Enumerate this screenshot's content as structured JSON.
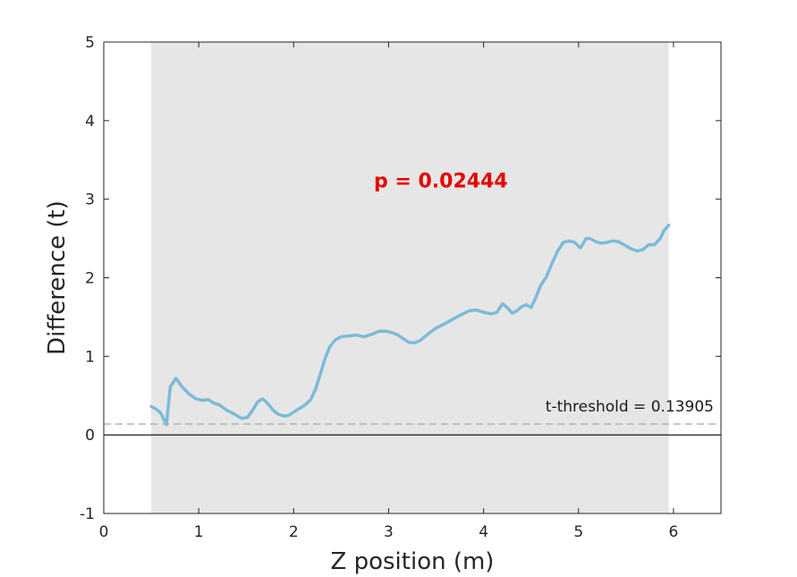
{
  "chart_data": {
    "type": "line",
    "xlabel": "Z position (m)",
    "ylabel": "Difference (t)",
    "xlim": [
      0,
      6.5
    ],
    "ylim": [
      -1,
      5
    ],
    "xticks": [
      0,
      1,
      2,
      3,
      4,
      5,
      6
    ],
    "yticks": [
      -1,
      0,
      1,
      2,
      3,
      4,
      5
    ],
    "xtick_labels": [
      "0",
      "1",
      "2",
      "3",
      "4",
      "5",
      "6"
    ],
    "ytick_labels": [
      "-1",
      "0",
      "1",
      "2",
      "3",
      "4",
      "5"
    ],
    "grid": false,
    "shaded_region": {
      "x_start": 0.5,
      "x_end": 5.95,
      "color": "#e6e6e6"
    },
    "zero_line": {
      "y": 0,
      "color": "#000000"
    },
    "threshold": {
      "value": 0.13905,
      "label": "t-threshold = 0.13905",
      "color": "#b3b3b3"
    },
    "annotation": {
      "text": "p = 0.02444",
      "color": "#e60000",
      "x": 3.55,
      "y": 3.15
    },
    "series": [
      {
        "color": "#7bbbd9",
        "x": [
          0.5,
          0.55,
          0.6,
          0.66,
          0.7,
          0.76,
          0.82,
          0.9,
          0.97,
          1.04,
          1.1,
          1.15,
          1.22,
          1.3,
          1.37,
          1.45,
          1.51,
          1.56,
          1.62,
          1.67,
          1.72,
          1.78,
          1.84,
          1.9,
          1.95,
          2.0,
          2.05,
          2.12,
          2.18,
          2.23,
          2.28,
          2.33,
          2.38,
          2.44,
          2.5,
          2.58,
          2.66,
          2.74,
          2.82,
          2.9,
          2.97,
          3.04,
          3.1,
          3.16,
          3.21,
          3.27,
          3.33,
          3.4,
          3.5,
          3.6,
          3.7,
          3.78,
          3.85,
          3.92,
          4.0,
          4.08,
          4.14,
          4.2,
          4.25,
          4.3,
          4.35,
          4.4,
          4.45,
          4.5,
          4.55,
          4.6,
          4.66,
          4.72,
          4.78,
          4.84,
          4.9,
          4.96,
          5.02,
          5.08,
          5.12,
          5.18,
          5.24,
          5.3,
          5.36,
          5.42,
          5.48,
          5.55,
          5.62,
          5.68,
          5.74,
          5.8,
          5.86,
          5.9,
          5.95
        ],
        "y": [
          0.36,
          0.33,
          0.28,
          0.13,
          0.61,
          0.72,
          0.62,
          0.52,
          0.46,
          0.44,
          0.45,
          0.41,
          0.38,
          0.31,
          0.27,
          0.21,
          0.22,
          0.3,
          0.42,
          0.46,
          0.41,
          0.32,
          0.26,
          0.24,
          0.25,
          0.29,
          0.33,
          0.38,
          0.45,
          0.58,
          0.77,
          0.97,
          1.12,
          1.21,
          1.25,
          1.26,
          1.27,
          1.25,
          1.28,
          1.32,
          1.32,
          1.3,
          1.27,
          1.22,
          1.18,
          1.17,
          1.2,
          1.27,
          1.36,
          1.42,
          1.49,
          1.54,
          1.58,
          1.59,
          1.56,
          1.54,
          1.56,
          1.67,
          1.62,
          1.55,
          1.58,
          1.63,
          1.66,
          1.62,
          1.75,
          1.9,
          2.01,
          2.18,
          2.34,
          2.45,
          2.47,
          2.45,
          2.38,
          2.5,
          2.5,
          2.46,
          2.44,
          2.45,
          2.47,
          2.46,
          2.42,
          2.37,
          2.34,
          2.36,
          2.42,
          2.42,
          2.5,
          2.6,
          2.67
        ]
      }
    ]
  }
}
